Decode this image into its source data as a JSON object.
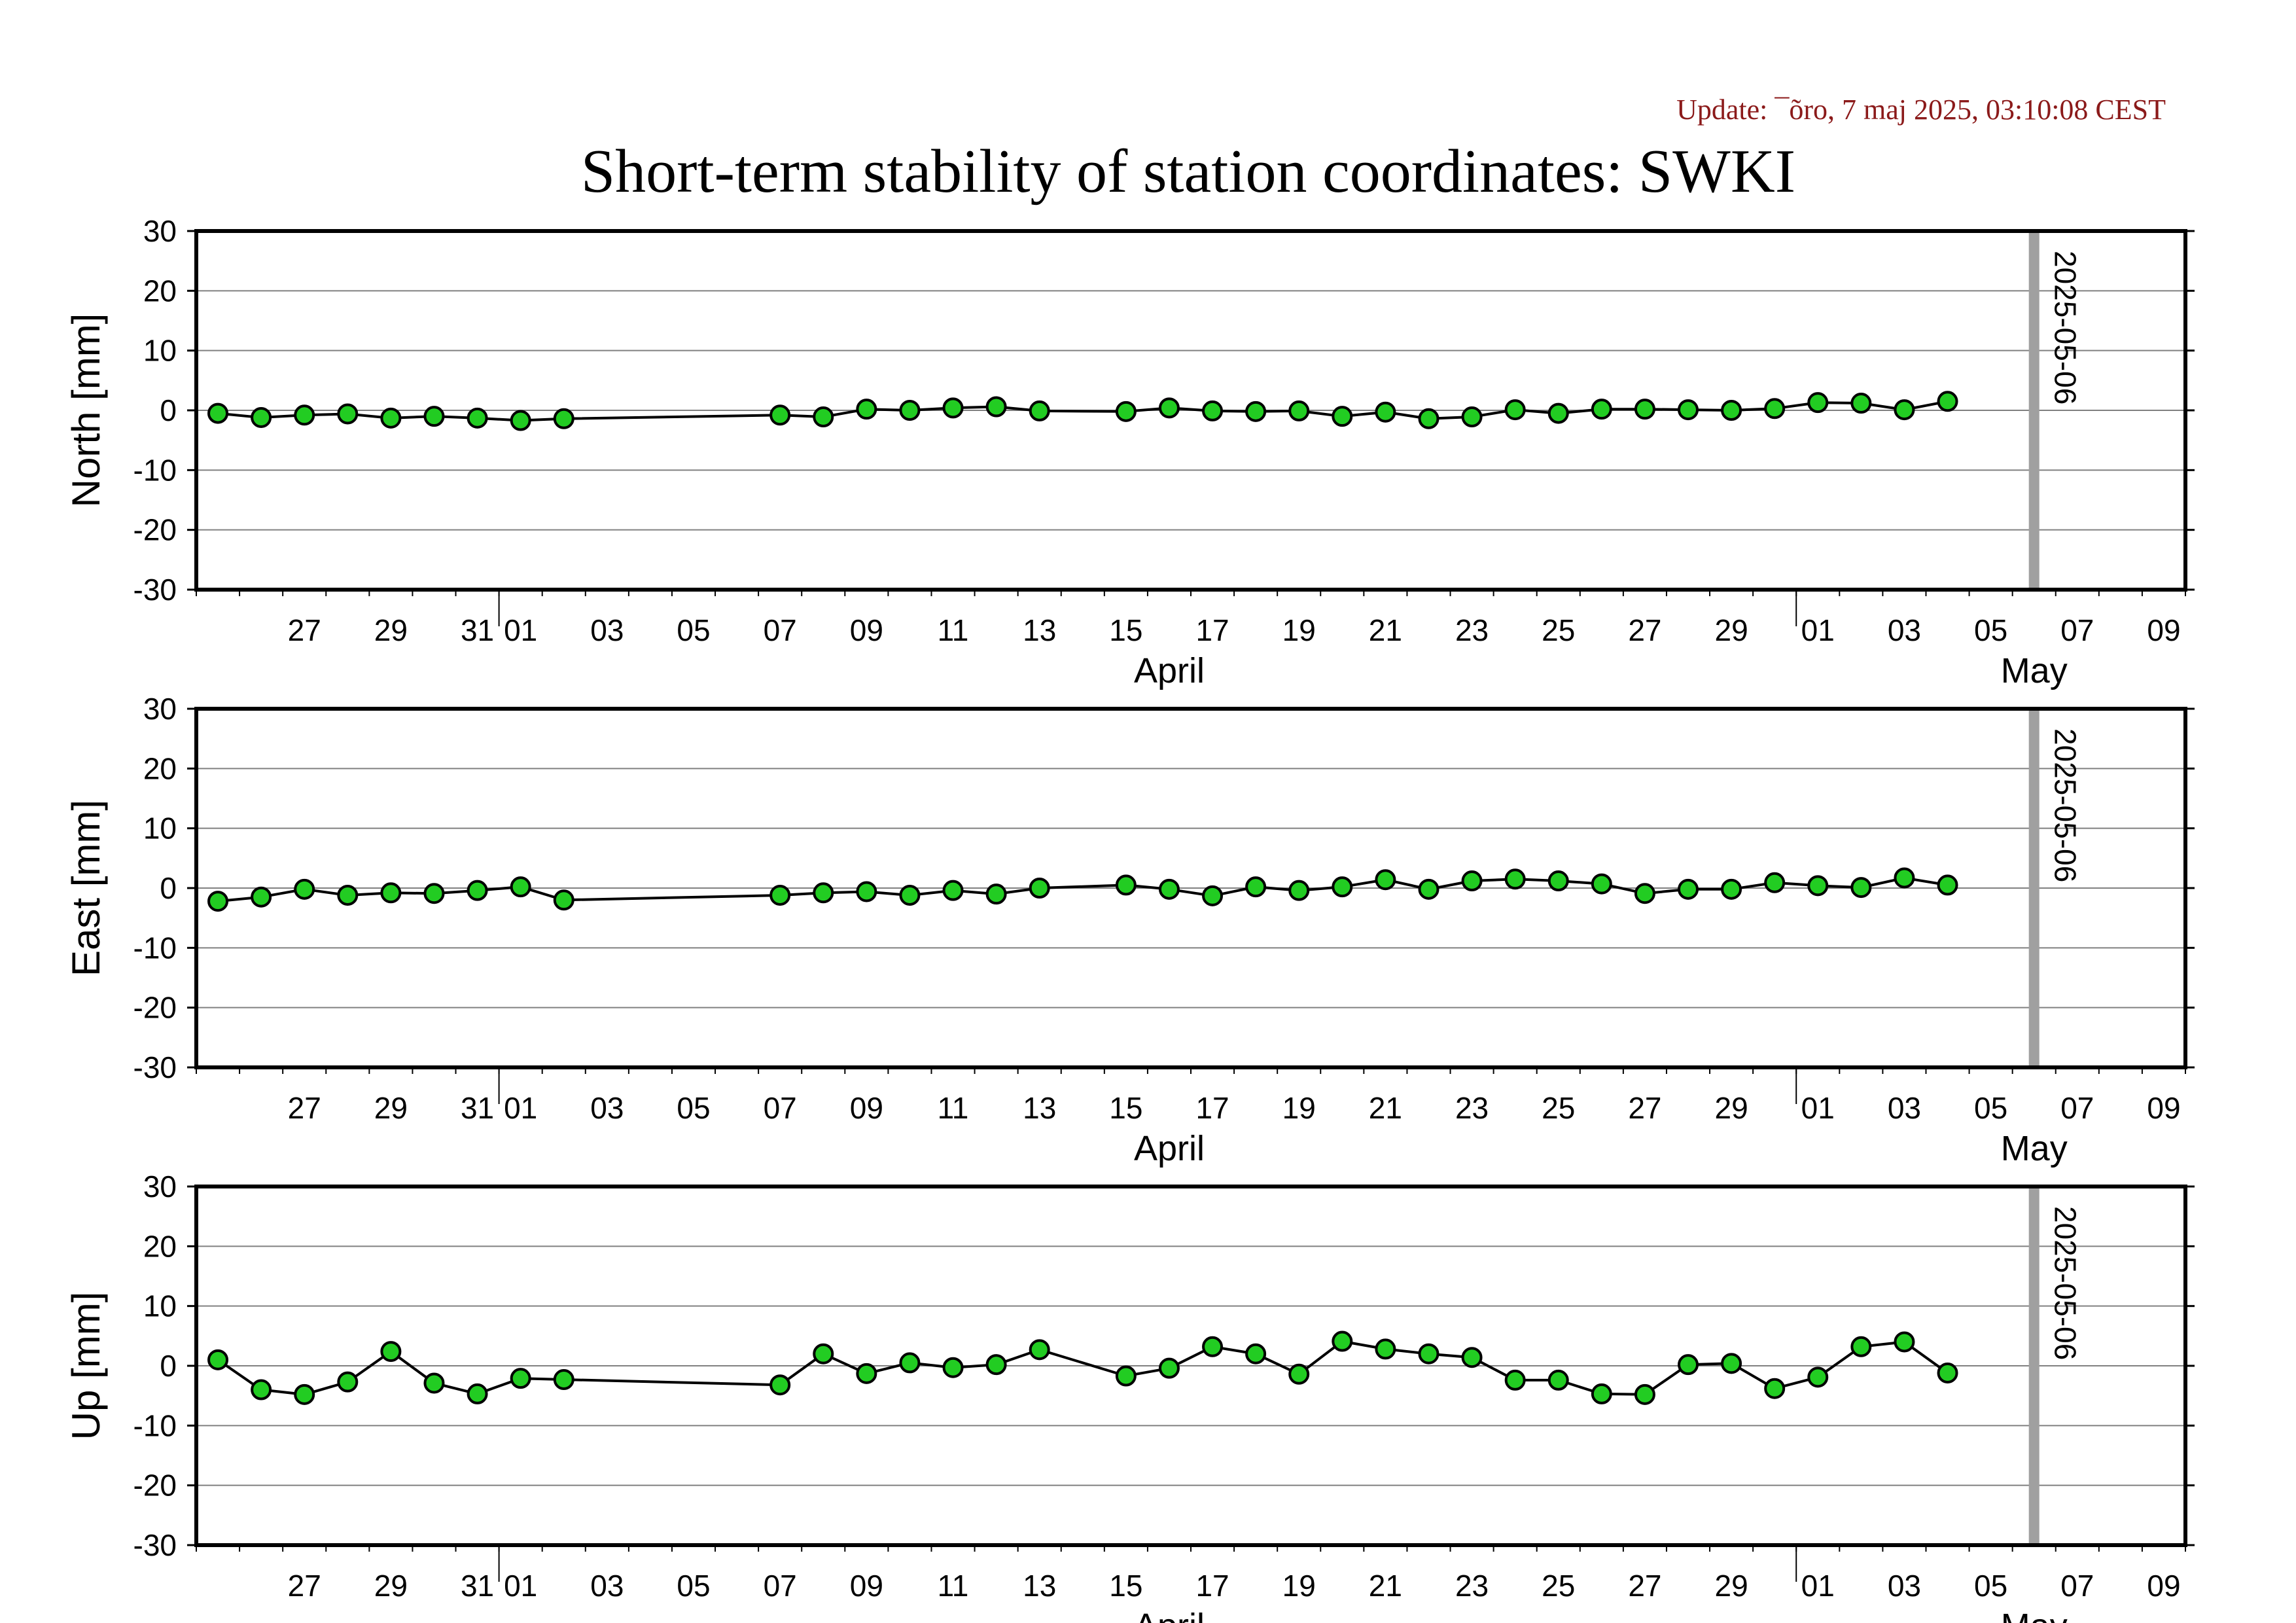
{
  "header": {
    "update_text": "Update: ¯õro, 7 maj 2025, 03:10:08 CEST",
    "title": "Short-term stability of station coordinates: SWKI"
  },
  "colors": {
    "marker_fill": "#22cc22",
    "marker_stroke": "#000000",
    "line": "#000000",
    "grid": "#808080",
    "today_line": "#a0a0a0",
    "update_text": "#8b1a1a"
  },
  "chart_data": [
    {
      "type": "line",
      "ylabel": "North [mm]",
      "ylim": [
        -30,
        30
      ],
      "yticks": [
        -30,
        -20,
        -10,
        0,
        10,
        20,
        30
      ],
      "xlim": [
        "2025-03-25",
        "2025-05-10"
      ],
      "grid": true,
      "marker": "circle",
      "x": [
        "2025-03-25",
        "2025-03-26",
        "2025-03-27",
        "2025-03-28",
        "2025-03-29",
        "2025-03-30",
        "2025-03-31",
        "2025-04-01",
        "2025-04-02",
        "2025-04-07",
        "2025-04-08",
        "2025-04-09",
        "2025-04-10",
        "2025-04-11",
        "2025-04-12",
        "2025-04-13",
        "2025-04-15",
        "2025-04-16",
        "2025-04-17",
        "2025-04-18",
        "2025-04-19",
        "2025-04-20",
        "2025-04-21",
        "2025-04-22",
        "2025-04-23",
        "2025-04-24",
        "2025-04-25",
        "2025-04-26",
        "2025-04-27",
        "2025-04-28",
        "2025-04-29",
        "2025-04-30",
        "2025-05-01",
        "2025-05-02",
        "2025-05-03",
        "2025-05-04"
      ],
      "y": [
        -0.5,
        -1.2,
        -0.8,
        -0.6,
        -1.3,
        -1.0,
        -1.3,
        -1.7,
        -1.4,
        -0.8,
        -1.1,
        0.2,
        0.0,
        0.4,
        0.6,
        -0.1,
        -0.2,
        0.4,
        -0.1,
        -0.2,
        -0.1,
        -1.0,
        -0.3,
        -1.4,
        -1.1,
        0.1,
        -0.5,
        0.2,
        0.2,
        0.1,
        0.0,
        0.3,
        1.3,
        1.2,
        0.1,
        1.5
      ],
      "vline": {
        "date": "2025-05-06",
        "label": "2025-05-06"
      }
    },
    {
      "type": "line",
      "ylabel": "East [mm]",
      "ylim": [
        -30,
        30
      ],
      "yticks": [
        -30,
        -20,
        -10,
        0,
        10,
        20,
        30
      ],
      "xlim": [
        "2025-03-25",
        "2025-05-10"
      ],
      "grid": true,
      "marker": "circle",
      "x": [
        "2025-03-25",
        "2025-03-26",
        "2025-03-27",
        "2025-03-28",
        "2025-03-29",
        "2025-03-30",
        "2025-03-31",
        "2025-04-01",
        "2025-04-02",
        "2025-04-07",
        "2025-04-08",
        "2025-04-09",
        "2025-04-10",
        "2025-04-11",
        "2025-04-12",
        "2025-04-13",
        "2025-04-15",
        "2025-04-16",
        "2025-04-17",
        "2025-04-18",
        "2025-04-19",
        "2025-04-20",
        "2025-04-21",
        "2025-04-22",
        "2025-04-23",
        "2025-04-24",
        "2025-04-25",
        "2025-04-26",
        "2025-04-27",
        "2025-04-28",
        "2025-04-29",
        "2025-04-30",
        "2025-05-01",
        "2025-05-02",
        "2025-05-03",
        "2025-05-04"
      ],
      "y": [
        -2.2,
        -1.5,
        -0.2,
        -1.2,
        -0.8,
        -0.9,
        -0.4,
        0.2,
        -2.0,
        -1.2,
        -0.8,
        -0.6,
        -1.2,
        -0.4,
        -1.0,
        0.0,
        0.5,
        -0.2,
        -1.3,
        0.2,
        -0.4,
        0.2,
        1.4,
        -0.2,
        1.2,
        1.5,
        1.2,
        0.7,
        -0.9,
        -0.2,
        -0.2,
        0.9,
        0.4,
        0.1,
        1.7,
        0.5
      ],
      "vline": {
        "date": "2025-05-06",
        "label": "2025-05-06"
      }
    },
    {
      "type": "line",
      "ylabel": "Up [mm]",
      "ylim": [
        -30,
        30
      ],
      "yticks": [
        -30,
        -20,
        -10,
        0,
        10,
        20,
        30
      ],
      "xlim": [
        "2025-03-25",
        "2025-05-10"
      ],
      "grid": true,
      "marker": "circle",
      "x": [
        "2025-03-25",
        "2025-03-26",
        "2025-03-27",
        "2025-03-28",
        "2025-03-29",
        "2025-03-30",
        "2025-03-31",
        "2025-04-01",
        "2025-04-02",
        "2025-04-07",
        "2025-04-08",
        "2025-04-09",
        "2025-04-10",
        "2025-04-11",
        "2025-04-12",
        "2025-04-13",
        "2025-04-15",
        "2025-04-16",
        "2025-04-17",
        "2025-04-18",
        "2025-04-19",
        "2025-04-20",
        "2025-04-21",
        "2025-04-22",
        "2025-04-23",
        "2025-04-24",
        "2025-04-25",
        "2025-04-26",
        "2025-04-27",
        "2025-04-28",
        "2025-04-29",
        "2025-04-30",
        "2025-05-01",
        "2025-05-02",
        "2025-05-03",
        "2025-05-04"
      ],
      "y": [
        1.0,
        -4.0,
        -4.8,
        -2.7,
        2.4,
        -2.9,
        -4.7,
        -2.1,
        -2.3,
        -3.2,
        2.0,
        -1.3,
        0.5,
        -0.3,
        0.2,
        2.7,
        -1.7,
        -0.4,
        3.2,
        2.0,
        -1.4,
        4.1,
        2.8,
        2.0,
        1.4,
        -2.4,
        -2.4,
        -4.7,
        -4.8,
        0.2,
        0.4,
        -3.8,
        -1.9,
        3.2,
        4.0,
        -1.2
      ],
      "vline": {
        "date": "2025-05-06",
        "label": "2025-05-06"
      }
    }
  ],
  "x_axis": {
    "tick_labels": [
      {
        "date": "2025-03-27",
        "label": "27"
      },
      {
        "date": "2025-03-29",
        "label": "29"
      },
      {
        "date": "2025-03-31",
        "label": "31"
      },
      {
        "date": "2025-04-01",
        "label": "01"
      },
      {
        "date": "2025-04-03",
        "label": "03"
      },
      {
        "date": "2025-04-05",
        "label": "05"
      },
      {
        "date": "2025-04-07",
        "label": "07"
      },
      {
        "date": "2025-04-09",
        "label": "09"
      },
      {
        "date": "2025-04-11",
        "label": "11"
      },
      {
        "date": "2025-04-13",
        "label": "13"
      },
      {
        "date": "2025-04-15",
        "label": "15"
      },
      {
        "date": "2025-04-17",
        "label": "17"
      },
      {
        "date": "2025-04-19",
        "label": "19"
      },
      {
        "date": "2025-04-21",
        "label": "21"
      },
      {
        "date": "2025-04-23",
        "label": "23"
      },
      {
        "date": "2025-04-25",
        "label": "25"
      },
      {
        "date": "2025-04-27",
        "label": "27"
      },
      {
        "date": "2025-04-29",
        "label": "29"
      },
      {
        "date": "2025-05-01",
        "label": "01"
      },
      {
        "date": "2025-05-03",
        "label": "03"
      },
      {
        "date": "2025-05-05",
        "label": "05"
      },
      {
        "date": "2025-05-07",
        "label": "07"
      },
      {
        "date": "2025-05-09",
        "label": "09"
      }
    ],
    "months": [
      {
        "date": "2025-04-16",
        "label": "April"
      },
      {
        "date": "2025-05-06",
        "label": "May"
      }
    ],
    "month_starts": [
      "2025-04-01",
      "2025-05-01"
    ]
  }
}
